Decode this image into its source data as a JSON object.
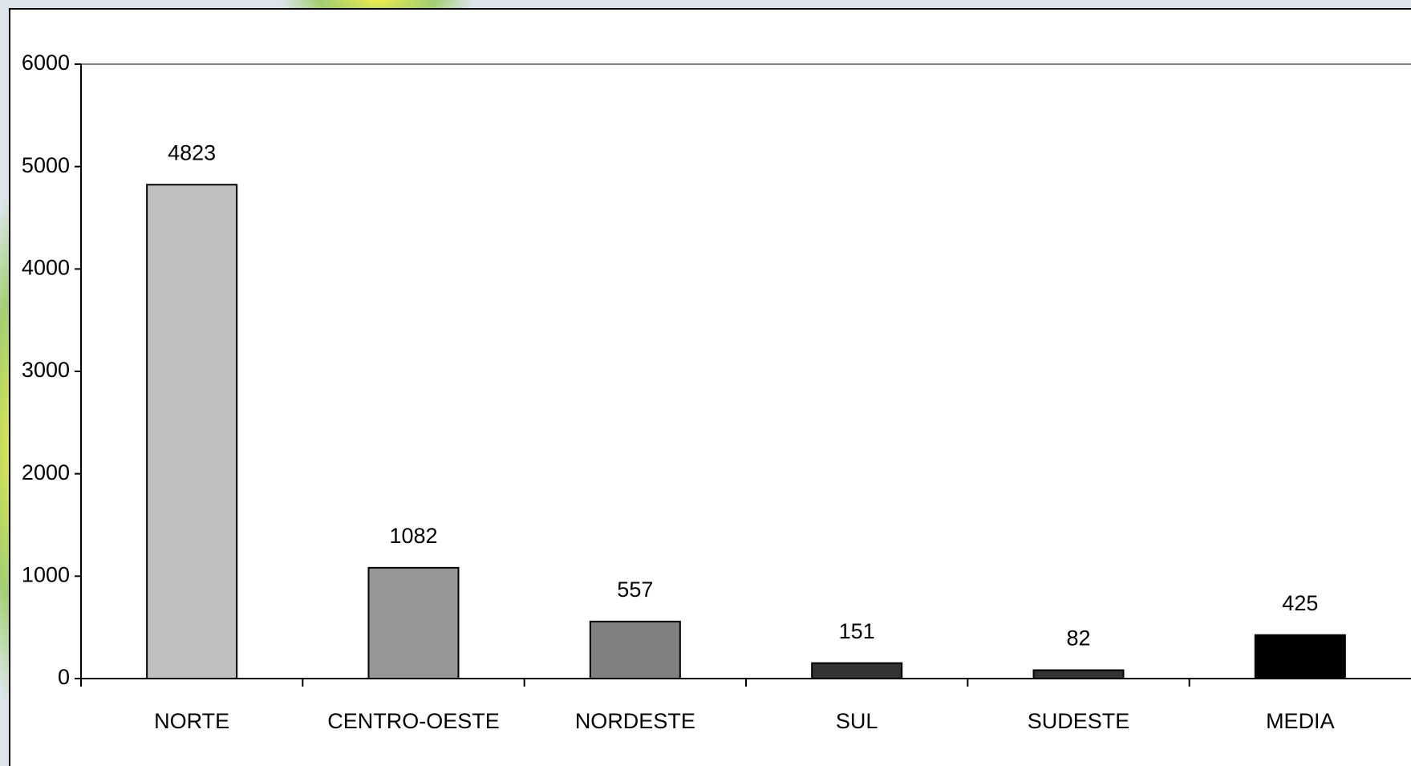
{
  "chart_data": {
    "type": "bar",
    "categories": [
      "NORTE",
      "CENTRO-OESTE",
      "NORDESTE",
      "SUL",
      "SUDESTE",
      "MEDIA"
    ],
    "values": [
      4823,
      1082,
      557,
      151,
      82,
      425
    ],
    "colors": [
      "#c0c0c0",
      "#969696",
      "#808080",
      "#333333",
      "#333333",
      "#000000"
    ],
    "ylim": [
      0,
      6000
    ],
    "yticks": [
      0,
      1000,
      2000,
      3000,
      4000,
      5000,
      6000
    ],
    "grid": false
  }
}
